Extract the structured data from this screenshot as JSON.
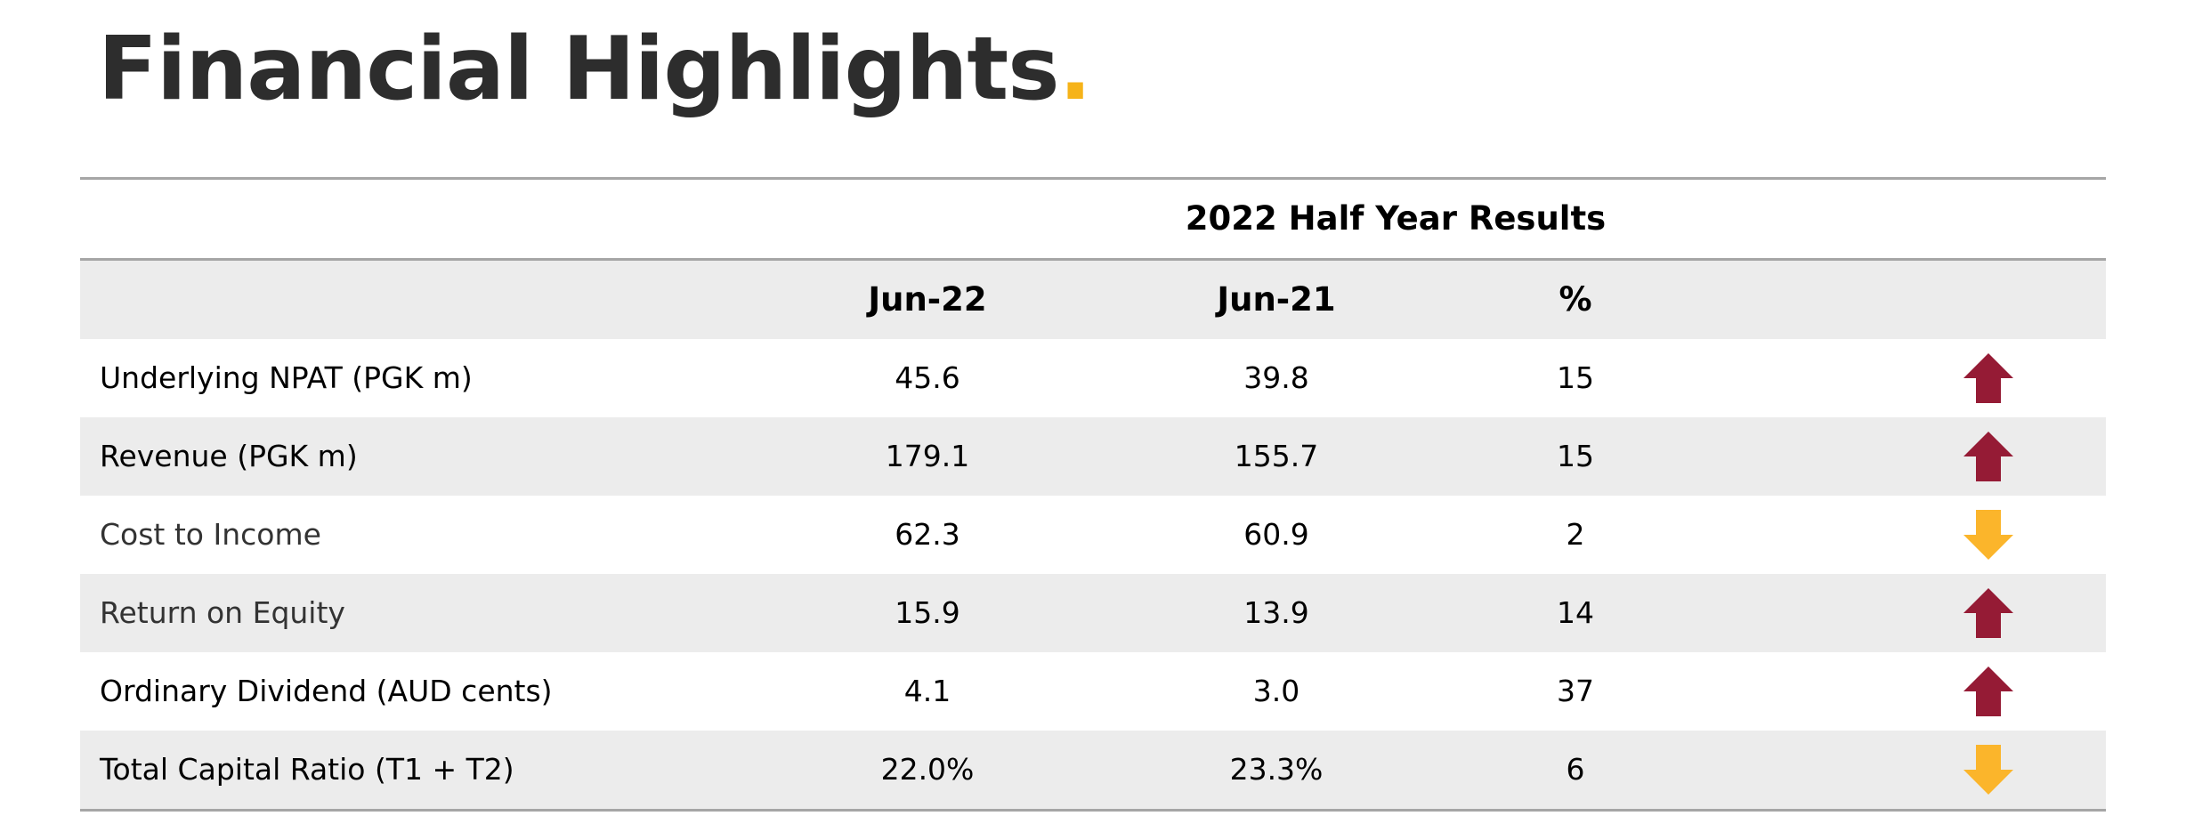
{
  "title": "Financial Highlights",
  "title_dot": ".",
  "colors": {
    "accent": "#f6b319",
    "up": "#951b35",
    "down": "#fbb52b",
    "shade": "#ececec"
  },
  "table": {
    "group_title": "2022 Half Year Results",
    "columns": [
      "",
      "Jun-22",
      "Jun-21",
      "%"
    ],
    "rows": [
      {
        "label": "Underlying NPAT (PGK m)",
        "jun22": "45.6",
        "jun21": "39.8",
        "pct": "15",
        "trend": "up",
        "trend_icon": "arrow-up-icon"
      },
      {
        "label": "Revenue (PGK m)",
        "jun22": "179.1",
        "jun21": "155.7",
        "pct": "15",
        "trend": "up",
        "trend_icon": "arrow-up-icon"
      },
      {
        "label": "Cost to Income",
        "jun22": "62.3",
        "jun21": "60.9",
        "pct": "2",
        "trend": "down",
        "trend_icon": "arrow-down-icon"
      },
      {
        "label": "Return on Equity",
        "jun22": "15.9",
        "jun21": "13.9",
        "pct": "14",
        "trend": "up",
        "trend_icon": "arrow-up-icon"
      },
      {
        "label": "Ordinary Dividend (AUD cents)",
        "jun22": "4.1",
        "jun21": "3.0",
        "pct": "37",
        "trend": "up",
        "trend_icon": "arrow-up-icon"
      },
      {
        "label": "Total Capital Ratio (T1 + T2)",
        "jun22": "22.0%",
        "jun21": "23.3%",
        "pct": "6",
        "trend": "down",
        "trend_icon": "arrow-down-icon"
      }
    ]
  }
}
